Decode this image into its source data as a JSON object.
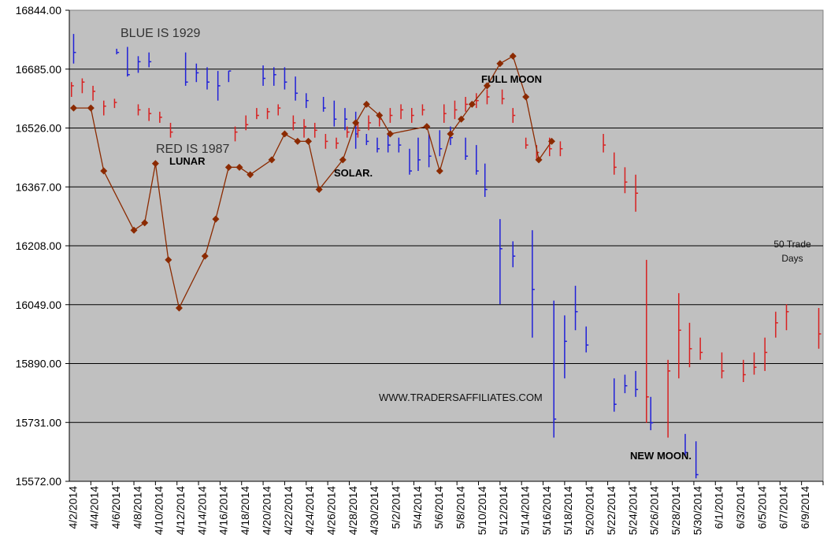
{
  "colors": {
    "plot_background": "#c0c0c0",
    "gridline": "#000000",
    "series_1929": "#2020d8",
    "series_1987": "#d82020",
    "lunar_solar_line": "#8b2a00"
  },
  "annotations": {
    "blue_legend": "BLUE IS 1929",
    "red_legend": "RED IS 1987",
    "lunar": "LUNAR",
    "solar": "SOLAR.",
    "full_moon": "FULL MOON",
    "new_moon": "NEW MOON.",
    "trade_days_line1": "50 Trade",
    "trade_days_line2": "Days",
    "website": "WWW.TRADERSAFFILIATES.COM"
  },
  "chart_data": {
    "type": "line",
    "y_ticks": [
      "16844.00",
      "16685.00",
      "16526.00",
      "16367.00",
      "16208.00",
      "16049.00",
      "15890.00",
      "15731.00",
      "15572.00"
    ],
    "ylim": [
      15572,
      16844
    ],
    "x_labels": [
      "4/2/2014",
      "4/4/2014",
      "4/6/2014",
      "4/8/2014",
      "4/10/2014",
      "4/12/2014",
      "4/14/2014",
      "4/16/2014",
      "4/18/2014",
      "4/20/2014",
      "4/22/2014",
      "4/24/2014",
      "4/26/2014",
      "4/28/2014",
      "4/30/2014",
      "5/2/2014",
      "5/4/2014",
      "5/6/2014",
      "5/8/2014",
      "5/10/2014",
      "5/12/2014",
      "5/14/2014",
      "5/16/2014",
      "5/18/2014",
      "5/20/2014",
      "5/22/2014",
      "5/24/2014",
      "5/26/2014",
      "5/28/2014",
      "5/30/2014",
      "6/1/2014",
      "6/3/2014",
      "6/5/2014",
      "6/7/2014",
      "6/9/2014"
    ],
    "series": [
      {
        "name": "BLUE IS 1929",
        "color": "#2020d8",
        "bars": [
          [
            0.2,
            16780,
            16700,
            16730
          ],
          [
            2.2,
            16740,
            16725,
            16730
          ],
          [
            2.7,
            16745,
            16665,
            16670
          ],
          [
            3.2,
            16720,
            16675,
            16705
          ],
          [
            3.7,
            16730,
            16690,
            16705
          ],
          [
            5.4,
            16730,
            16640,
            16650
          ],
          [
            5.9,
            16700,
            16650,
            16675
          ],
          [
            6.4,
            16690,
            16630,
            16650
          ],
          [
            6.9,
            16680,
            16600,
            16640
          ],
          [
            7.4,
            16680,
            16650,
            16680
          ],
          [
            9.0,
            16695,
            16640,
            16660
          ],
          [
            9.5,
            16690,
            16640,
            16670
          ],
          [
            10.0,
            16690,
            16630,
            16650
          ],
          [
            10.5,
            16665,
            16600,
            16620
          ],
          [
            11.0,
            16620,
            16580,
            16600
          ],
          [
            11.8,
            16610,
            16570,
            16580
          ],
          [
            12.3,
            16600,
            16530,
            16550
          ],
          [
            12.8,
            16580,
            16520,
            16550
          ],
          [
            13.3,
            16570,
            16470,
            16510
          ],
          [
            13.8,
            16510,
            16480,
            16490
          ],
          [
            14.3,
            16500,
            16460,
            16470
          ],
          [
            14.8,
            16510,
            16460,
            16480
          ],
          [
            15.3,
            16500,
            16460,
            16480
          ],
          [
            15.8,
            16470,
            16400,
            16410
          ],
          [
            16.2,
            16500,
            16410,
            16440
          ],
          [
            16.7,
            16510,
            16420,
            16450
          ],
          [
            17.2,
            16520,
            16450,
            16470
          ],
          [
            17.7,
            16530,
            16480,
            16500
          ],
          [
            18.4,
            16500,
            16440,
            16450
          ],
          [
            18.9,
            16480,
            16400,
            16410
          ],
          [
            19.3,
            16430,
            16340,
            16360
          ],
          [
            20.0,
            16280,
            16050,
            16200
          ],
          [
            20.6,
            16220,
            16150,
            16180
          ],
          [
            21.5,
            16250,
            15960,
            16090
          ],
          [
            22.5,
            16060,
            15690,
            15740
          ],
          [
            23.0,
            16020,
            15850,
            15950
          ],
          [
            23.5,
            16100,
            15980,
            16030
          ],
          [
            24.0,
            15990,
            15920,
            15940
          ],
          [
            25.3,
            15850,
            15760,
            15780
          ],
          [
            25.8,
            15860,
            15810,
            15830
          ],
          [
            26.3,
            15870,
            15800,
            15820
          ],
          [
            27.0,
            15800,
            15710,
            15730
          ],
          [
            28.6,
            15700,
            15640,
            15650
          ],
          [
            29.1,
            15680,
            15580,
            15590
          ]
        ]
      },
      {
        "name": "RED IS 1987",
        "color": "#d82020",
        "bars": [
          [
            0.1,
            16650,
            16610,
            16640
          ],
          [
            0.6,
            16660,
            16620,
            16650
          ],
          [
            1.1,
            16640,
            16600,
            16625
          ],
          [
            1.6,
            16600,
            16560,
            16585
          ],
          [
            2.1,
            16605,
            16580,
            16595
          ],
          [
            3.2,
            16590,
            16560,
            16575
          ],
          [
            3.7,
            16580,
            16545,
            16565
          ],
          [
            4.2,
            16570,
            16540,
            16555
          ],
          [
            4.7,
            16540,
            16500,
            16515
          ],
          [
            7.7,
            16530,
            16490,
            16515
          ],
          [
            8.2,
            16560,
            16520,
            16535
          ],
          [
            8.7,
            16580,
            16550,
            16560
          ],
          [
            9.2,
            16580,
            16550,
            16570
          ],
          [
            9.7,
            16590,
            16560,
            16580
          ],
          [
            10.4,
            16560,
            16520,
            16540
          ],
          [
            10.9,
            16550,
            16500,
            16530
          ],
          [
            11.4,
            16540,
            16500,
            16520
          ],
          [
            11.9,
            16510,
            16470,
            16490
          ],
          [
            12.4,
            16500,
            16470,
            16485
          ],
          [
            12.9,
            16530,
            16500,
            16515
          ],
          [
            13.4,
            16540,
            16500,
            16520
          ],
          [
            13.9,
            16560,
            16520,
            16540
          ],
          [
            14.4,
            16570,
            16530,
            16550
          ],
          [
            14.9,
            16580,
            16540,
            16560
          ],
          [
            15.4,
            16590,
            16550,
            16575
          ],
          [
            15.9,
            16580,
            16540,
            16560
          ],
          [
            16.4,
            16590,
            16560,
            16575
          ],
          [
            17.4,
            16590,
            16540,
            16565
          ],
          [
            17.9,
            16600,
            16550,
            16575
          ],
          [
            18.4,
            16610,
            16570,
            16590
          ],
          [
            18.9,
            16620,
            16580,
            16600
          ],
          [
            19.4,
            16630,
            16590,
            16610
          ],
          [
            20.1,
            16630,
            16590,
            16605
          ],
          [
            20.6,
            16580,
            16540,
            16560
          ],
          [
            21.2,
            16500,
            16470,
            16480
          ],
          [
            21.7,
            16480,
            16440,
            16460
          ],
          [
            22.3,
            16500,
            16450,
            16470
          ],
          [
            22.8,
            16490,
            16450,
            16470
          ],
          [
            24.8,
            16510,
            16460,
            16480
          ],
          [
            25.3,
            16460,
            16400,
            16420
          ],
          [
            25.8,
            16420,
            16350,
            16380
          ],
          [
            26.3,
            16400,
            16300,
            16350
          ],
          [
            26.8,
            16170,
            15730,
            15800
          ],
          [
            27.8,
            15900,
            15690,
            15870
          ],
          [
            28.3,
            16080,
            15850,
            15980
          ],
          [
            28.8,
            16000,
            15880,
            15930
          ],
          [
            29.3,
            15960,
            15900,
            15920
          ],
          [
            30.3,
            15920,
            15850,
            15870
          ],
          [
            31.3,
            15900,
            15840,
            15860
          ],
          [
            31.8,
            15920,
            15860,
            15880
          ],
          [
            32.3,
            15960,
            15870,
            15920
          ],
          [
            32.8,
            16030,
            15960,
            16000
          ],
          [
            33.3,
            16050,
            15980,
            16030
          ],
          [
            34.8,
            16040,
            15930,
            15970
          ]
        ]
      },
      {
        "name": "LUNAR / SOLAR",
        "color": "#8b2a00",
        "points": [
          [
            0.2,
            16580
          ],
          [
            1.0,
            16580
          ],
          [
            1.6,
            16410
          ],
          [
            3.0,
            16250
          ],
          [
            3.5,
            16270
          ],
          [
            4.0,
            16430
          ],
          [
            4.6,
            16170
          ],
          [
            5.1,
            16040
          ],
          [
            6.3,
            16180
          ],
          [
            6.8,
            16280
          ],
          [
            7.4,
            16420
          ],
          [
            7.9,
            16420
          ],
          [
            8.4,
            16400
          ],
          [
            9.4,
            16440
          ],
          [
            10.0,
            16510
          ],
          [
            10.6,
            16490
          ],
          [
            11.1,
            16490
          ],
          [
            11.6,
            16360
          ],
          [
            12.7,
            16440
          ],
          [
            13.3,
            16540
          ],
          [
            13.8,
            16590
          ],
          [
            14.4,
            16560
          ],
          [
            14.9,
            16510
          ],
          [
            16.6,
            16530
          ],
          [
            17.2,
            16410
          ],
          [
            17.7,
            16510
          ],
          [
            18.2,
            16550
          ],
          [
            18.7,
            16590
          ],
          [
            19.4,
            16640
          ],
          [
            20.0,
            16700
          ],
          [
            20.6,
            16720
          ],
          [
            21.2,
            16610
          ],
          [
            21.8,
            16440
          ],
          [
            22.4,
            16490
          ]
        ]
      }
    ]
  }
}
